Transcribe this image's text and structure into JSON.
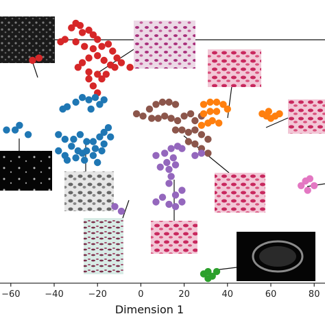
{
  "chart_data": {
    "type": "scatter",
    "title": "",
    "xlabel": "Dimension 1",
    "ylabel": "",
    "xlim": [
      -65,
      85
    ],
    "ylim": [
      -60,
      62
    ],
    "xticks": [
      -60,
      -40,
      -20,
      0,
      20,
      40,
      60,
      80
    ],
    "grid": false,
    "legend": "none",
    "series": [
      {
        "color": "#d62728",
        "points": [
          [
            -50,
            36
          ],
          [
            -47,
            37
          ],
          [
            -37,
            44
          ],
          [
            -35,
            45
          ],
          [
            -32,
            50
          ],
          [
            -30,
            52
          ],
          [
            -28,
            51
          ],
          [
            -27,
            48
          ],
          [
            -24,
            49
          ],
          [
            -22,
            47
          ],
          [
            -20,
            45
          ],
          [
            -30,
            44
          ],
          [
            -26,
            42
          ],
          [
            -22,
            41
          ],
          [
            -18,
            42
          ],
          [
            -15,
            43
          ],
          [
            -13,
            40
          ],
          [
            -11,
            37
          ],
          [
            -14,
            34
          ],
          [
            -17,
            36
          ],
          [
            -20,
            38
          ],
          [
            -24,
            37
          ],
          [
            -27,
            35
          ],
          [
            -29,
            33
          ],
          [
            -24,
            31
          ],
          [
            -20,
            30
          ],
          [
            -16,
            30
          ],
          [
            -12,
            33
          ],
          [
            -18,
            28
          ],
          [
            -24,
            28
          ],
          [
            -22,
            25
          ],
          [
            -9,
            35
          ],
          [
            -5,
            33
          ],
          [
            -20,
            22
          ]
        ]
      },
      {
        "color": "#1f77b4",
        "points": [
          [
            -30,
            18
          ],
          [
            -27,
            20
          ],
          [
            -24,
            19
          ],
          [
            -21,
            20
          ],
          [
            -19,
            17
          ],
          [
            -17,
            19
          ],
          [
            -23,
            15
          ],
          [
            -34,
            16
          ],
          [
            -36,
            15
          ],
          [
            -58,
            6
          ],
          [
            -56,
            8
          ],
          [
            -62,
            6
          ],
          [
            -52,
            4
          ],
          [
            -38,
            4
          ],
          [
            -35,
            2
          ],
          [
            -31,
            2
          ],
          [
            -28,
            4
          ],
          [
            -25,
            1
          ],
          [
            -22,
            1
          ],
          [
            -19,
            3
          ],
          [
            -17,
            5
          ],
          [
            -15,
            7
          ],
          [
            -14,
            3
          ],
          [
            -17,
            0
          ],
          [
            -21,
            -2
          ],
          [
            -25,
            -3
          ],
          [
            -29,
            -3
          ],
          [
            -32,
            -1
          ],
          [
            -38,
            -3
          ],
          [
            -35,
            -5
          ],
          [
            -30,
            -6
          ],
          [
            -27,
            -4
          ],
          [
            -22,
            -5
          ],
          [
            -18,
            -3
          ],
          [
            -20,
            -8
          ],
          [
            -26,
            -7
          ],
          [
            -34,
            -7
          ]
        ]
      },
      {
        "color": "#8c564b",
        "points": [
          [
            -2,
            13
          ],
          [
            1,
            12
          ],
          [
            4,
            15
          ],
          [
            7,
            17
          ],
          [
            10,
            18
          ],
          [
            13,
            18
          ],
          [
            16,
            17
          ],
          [
            5,
            11
          ],
          [
            8,
            11
          ],
          [
            11,
            12
          ],
          [
            14,
            11
          ],
          [
            17,
            10
          ],
          [
            20,
            12
          ],
          [
            23,
            13
          ],
          [
            25,
            10
          ],
          [
            28,
            12
          ],
          [
            16,
            6
          ],
          [
            19,
            6
          ],
          [
            22,
            5
          ],
          [
            25,
            6
          ],
          [
            28,
            4
          ],
          [
            31,
            2
          ],
          [
            22,
            1
          ],
          [
            25,
            0
          ],
          [
            28,
            -2
          ],
          [
            31,
            -4
          ]
        ]
      },
      {
        "color": "#ff7f0e",
        "points": [
          [
            29,
            17
          ],
          [
            32,
            18
          ],
          [
            35,
            18
          ],
          [
            38,
            17
          ],
          [
            40,
            15
          ],
          [
            35,
            14
          ],
          [
            32,
            14
          ],
          [
            29,
            13
          ],
          [
            33,
            10
          ],
          [
            36,
            9
          ],
          [
            31,
            9
          ],
          [
            28,
            8
          ],
          [
            56,
            13
          ],
          [
            58,
            12
          ],
          [
            60,
            11
          ],
          [
            62,
            12
          ],
          [
            64,
            13
          ],
          [
            59,
            14
          ]
        ]
      },
      {
        "color": "#9467bd",
        "points": [
          [
            7,
            -5
          ],
          [
            11,
            -4
          ],
          [
            14,
            -2
          ],
          [
            17,
            -1
          ],
          [
            19,
            -2
          ],
          [
            15,
            -6
          ],
          [
            12,
            -8
          ],
          [
            9,
            -10
          ],
          [
            13,
            -11
          ],
          [
            16,
            -9
          ],
          [
            14,
            -14
          ],
          [
            13,
            -17
          ],
          [
            16,
            -22
          ],
          [
            19,
            -20
          ],
          [
            10,
            -23
          ],
          [
            13,
            -26
          ],
          [
            16,
            -27
          ],
          [
            19,
            -25
          ],
          [
            7,
            -25
          ],
          [
            -12,
            -27
          ],
          [
            -9,
            -29
          ],
          [
            25,
            -5
          ],
          [
            28,
            -4
          ]
        ]
      },
      {
        "color": "#e377c2",
        "points": [
          [
            74,
            -18
          ],
          [
            76,
            -16
          ],
          [
            78,
            -15
          ],
          [
            80,
            -18
          ],
          [
            77,
            -20
          ]
        ]
      },
      {
        "color": "#2ca02c",
        "points": [
          [
            29,
            -56
          ],
          [
            31,
            -55
          ],
          [
            33,
            -57
          ],
          [
            35,
            -55
          ],
          [
            31,
            -58
          ]
        ]
      }
    ]
  }
}
